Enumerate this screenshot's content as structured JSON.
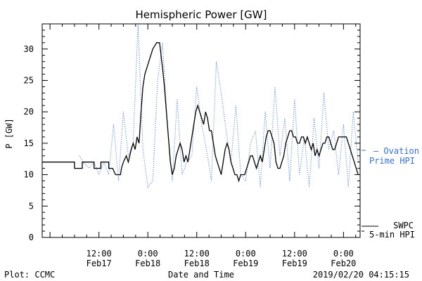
{
  "chart_data": {
    "type": "line",
    "title": "Hemispheric Power [GW]",
    "xlabel": "Date and Time",
    "ylabel": "P [GW]",
    "ylim": [
      0,
      34
    ],
    "xlim": [
      -0.08,
      3.17
    ],
    "yticks": [
      0,
      5,
      10,
      15,
      20,
      25,
      30
    ],
    "xticks": [
      {
        "x": 0.5,
        "l1": "12:00",
        "l2": "Feb17"
      },
      {
        "x": 1.0,
        "l1": "0:00",
        "l2": "Feb18"
      },
      {
        "x": 1.5,
        "l1": "12:00",
        "l2": "Feb18"
      },
      {
        "x": 2.0,
        "l1": "0:00",
        "l2": "Feb19"
      },
      {
        "x": 2.5,
        "l1": "12:00",
        "l2": "Feb19"
      },
      {
        "x": 3.0,
        "l1": "0:00",
        "l2": "Feb20"
      }
    ],
    "x_unit": "days since 2019-02-17 00:00 UT",
    "series": [
      {
        "name": "SWPC 5-min HPI",
        "label_lines": [
          "SWPC",
          "5-min HPI"
        ],
        "color": "#000000",
        "style": "solid",
        "x": [
          -0.08,
          0.25,
          0.25,
          0.33,
          0.33,
          0.45,
          0.45,
          0.52,
          0.52,
          0.6,
          0.6,
          0.64,
          0.67,
          0.7,
          0.72,
          0.73,
          0.75,
          0.78,
          0.8,
          0.83,
          0.85,
          0.87,
          0.89,
          0.91,
          0.93,
          0.95,
          0.97,
          0.99,
          1.01,
          1.05,
          1.09,
          1.12,
          1.15,
          1.17,
          1.19,
          1.21,
          1.23,
          1.25,
          1.27,
          1.29,
          1.31,
          1.33,
          1.35,
          1.37,
          1.39,
          1.41,
          1.43,
          1.45,
          1.47,
          1.49,
          1.51,
          1.53,
          1.55,
          1.57,
          1.59,
          1.61,
          1.63,
          1.65,
          1.67,
          1.69,
          1.71,
          1.73,
          1.75,
          1.77,
          1.79,
          1.81,
          1.83,
          1.85,
          1.87,
          1.89,
          1.91,
          1.93,
          1.95,
          1.97,
          1.99,
          2.01,
          2.03,
          2.05,
          2.07,
          2.09,
          2.11,
          2.13,
          2.15,
          2.17,
          2.19,
          2.21,
          2.23,
          2.25,
          2.27,
          2.29,
          2.31,
          2.33,
          2.35,
          2.37,
          2.39,
          2.41,
          2.43,
          2.45,
          2.47,
          2.49,
          2.51,
          2.53,
          2.55,
          2.57,
          2.59,
          2.61,
          2.63,
          2.65,
          2.67,
          2.69,
          2.71,
          2.73,
          2.75,
          2.77,
          2.79,
          2.81,
          2.83,
          2.85,
          2.87,
          2.89,
          2.91,
          2.93,
          2.95,
          2.97,
          2.99,
          3.01,
          3.03,
          3.05,
          3.07,
          3.09,
          3.11,
          3.13,
          3.15
        ],
        "y": [
          12,
          12,
          11,
          11,
          12,
          12,
          11,
          11,
          12,
          12,
          11,
          11,
          10,
          10,
          10,
          11,
          12,
          13,
          12,
          14,
          15,
          14,
          16,
          15,
          20,
          24,
          26,
          27,
          28,
          30,
          31,
          31,
          27,
          24,
          20,
          16,
          12,
          10,
          11,
          13,
          14,
          15,
          14,
          12,
          13,
          12,
          14,
          16,
          18,
          20,
          21,
          20,
          19,
          18,
          20,
          19,
          17,
          17,
          15,
          13,
          12,
          11,
          10,
          12,
          14,
          15,
          14,
          12,
          11,
          10,
          10,
          9,
          10,
          10,
          10,
          11,
          12,
          13,
          13,
          12,
          11,
          12,
          13,
          12,
          14,
          16,
          17,
          17,
          16,
          15,
          12,
          11,
          11,
          12,
          13,
          15,
          16,
          17,
          17,
          16,
          16,
          15,
          15,
          16,
          16,
          15,
          16,
          15,
          14,
          15,
          13,
          14,
          13,
          14,
          15,
          15,
          16,
          16,
          15,
          14,
          14,
          15,
          16,
          16,
          16,
          16,
          16,
          15,
          14,
          13,
          12,
          11,
          10
        ]
      },
      {
        "name": "Ovation Prime HPI",
        "label_lines": [
          "— Ovation",
          "Prime HPI"
        ],
        "color": "#3a6fc4",
        "style": "dotted",
        "x": [
          0.3,
          0.34,
          0.4,
          0.45,
          0.5,
          0.55,
          0.6,
          0.65,
          0.7,
          0.75,
          0.8,
          0.85,
          0.9,
          0.95,
          1.0,
          1.05,
          1.1,
          1.15,
          1.2,
          1.25,
          1.3,
          1.35,
          1.4,
          1.45,
          1.5,
          1.55,
          1.6,
          1.65,
          1.7,
          1.75,
          1.8,
          1.85,
          1.9,
          1.95,
          2.0,
          2.05,
          2.1,
          2.15,
          2.2,
          2.25,
          2.3,
          2.35,
          2.4,
          2.45,
          2.5,
          2.55,
          2.6,
          2.65,
          2.7,
          2.75,
          2.8,
          2.85,
          2.9,
          2.95,
          3.0,
          3.05,
          3.1,
          3.15
        ],
        "y": [
          13,
          12,
          11,
          12,
          10,
          12,
          10,
          18,
          9,
          20,
          13,
          15,
          34,
          14,
          8,
          9,
          25,
          31,
          18,
          9,
          22,
          10,
          12,
          13,
          24,
          18,
          14,
          9,
          28,
          23,
          17,
          12,
          21,
          10,
          9,
          15,
          17,
          8,
          20,
          11,
          24,
          13,
          19,
          9,
          22,
          10,
          16,
          8,
          19,
          11,
          23,
          14,
          17,
          10,
          18,
          8,
          20,
          12
        ]
      }
    ],
    "footer": {
      "left": "Plot: CCMC",
      "center": "Date and Time",
      "right": "2019/02/20 04:15:15"
    }
  }
}
